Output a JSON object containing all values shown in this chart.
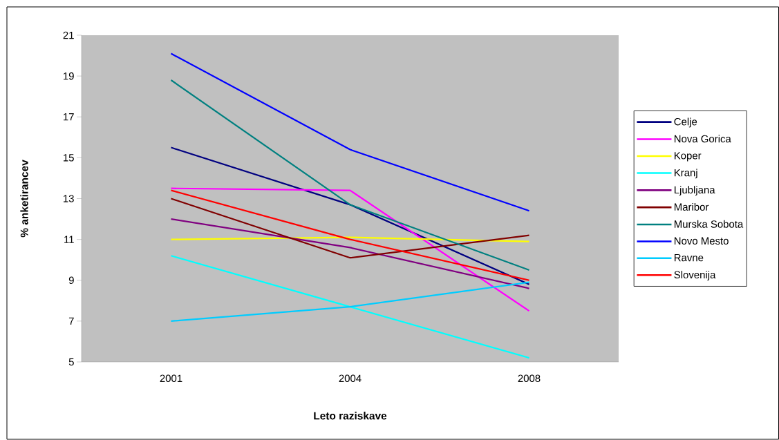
{
  "chart_data": {
    "type": "line",
    "xlabel": "Leto raziskave",
    "ylabel": "% anketirancev",
    "categories": [
      "2001",
      "2004",
      "2008"
    ],
    "series": [
      {
        "name": "Celje",
        "color": "#000080",
        "values": [
          15.5,
          12.7,
          8.8
        ]
      },
      {
        "name": "Nova Gorica",
        "color": "#ff00ff",
        "values": [
          13.5,
          13.4,
          7.5
        ]
      },
      {
        "name": "Koper",
        "color": "#ffff00",
        "values": [
          11.0,
          11.1,
          10.9
        ]
      },
      {
        "name": "Kranj",
        "color": "#00ffff",
        "values": [
          10.2,
          7.7,
          5.2
        ]
      },
      {
        "name": "Ljubljana",
        "color": "#800080",
        "values": [
          12.0,
          10.6,
          8.6
        ]
      },
      {
        "name": "Maribor",
        "color": "#800000",
        "values": [
          13.0,
          10.1,
          11.2
        ]
      },
      {
        "name": "Murska Sobota",
        "color": "#008080",
        "values": [
          18.8,
          12.7,
          9.5
        ]
      },
      {
        "name": "Novo Mesto",
        "color": "#0000ff",
        "values": [
          20.1,
          15.4,
          12.4
        ]
      },
      {
        "name": "Ravne",
        "color": "#00ccff",
        "values": [
          7.0,
          7.7,
          8.9
        ]
      },
      {
        "name": "Slovenija",
        "color": "#ff0000",
        "values": [
          13.4,
          11.0,
          9.0
        ]
      }
    ],
    "ylim": [
      5,
      21
    ],
    "yticks": [
      5,
      7,
      9,
      11,
      13,
      15,
      17,
      19,
      21
    ],
    "grid": false,
    "legend": "right",
    "marker": "none",
    "line_style": "solid"
  }
}
